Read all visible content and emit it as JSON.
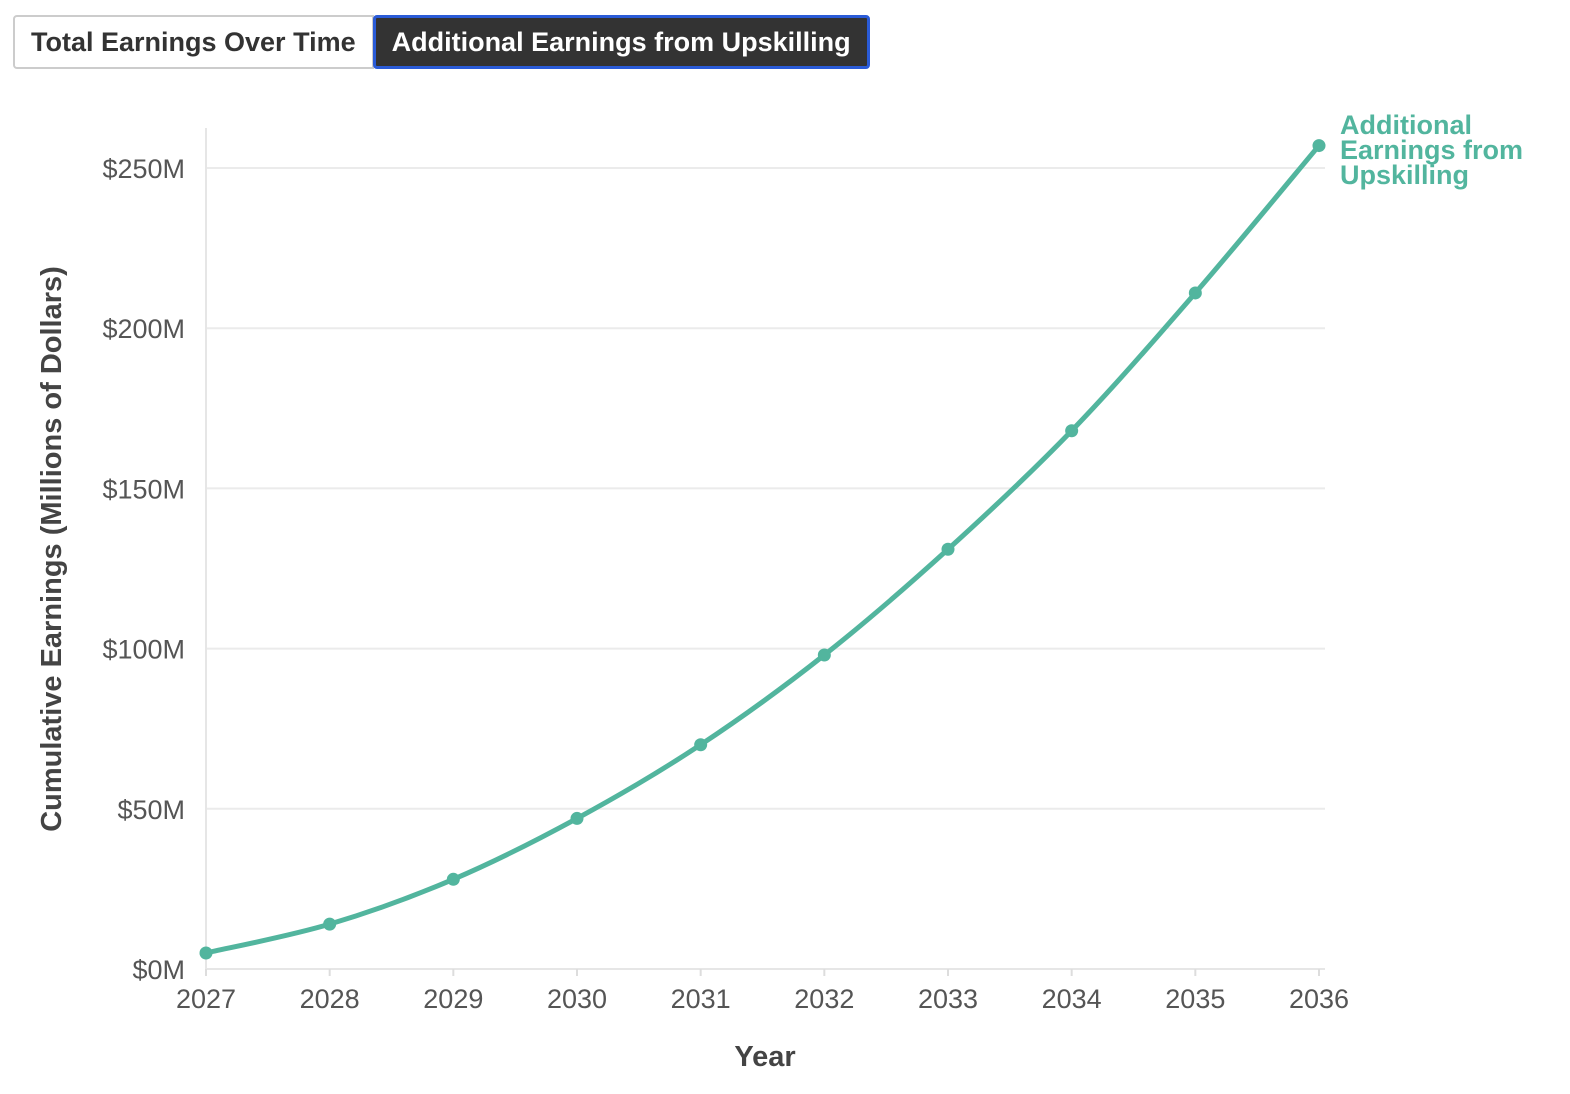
{
  "tabs": [
    {
      "label": "Total Earnings Over Time",
      "active": false
    },
    {
      "label": "Additional Earnings from Upskilling",
      "active": true
    }
  ],
  "chart_data": {
    "type": "line",
    "title": "",
    "xlabel": "Year",
    "ylabel": "Cumulative Earnings (Millions of Dollars)",
    "x": [
      2027,
      2028,
      2029,
      2030,
      2031,
      2032,
      2033,
      2034,
      2035,
      2036
    ],
    "series": [
      {
        "name": "Additional Earnings from Upskilling",
        "label_lines": [
          "Additional",
          "Earnings from",
          "Upskilling"
        ],
        "color": "#52b59e",
        "values": [
          5,
          14,
          28,
          47,
          70,
          98,
          131,
          168,
          211,
          257
        ]
      }
    ],
    "ylim": [
      0,
      262
    ],
    "yticks": [
      0,
      50,
      100,
      150,
      200,
      250
    ],
    "ytick_labels": [
      "$0M",
      "$50M",
      "$100M",
      "$150M",
      "$200M",
      "$250M"
    ],
    "xtick_labels": [
      "2027",
      "2028",
      "2029",
      "2030",
      "2031",
      "2032",
      "2033",
      "2034",
      "2035",
      "2036"
    ],
    "grid": true,
    "legend": "end-of-line label"
  }
}
